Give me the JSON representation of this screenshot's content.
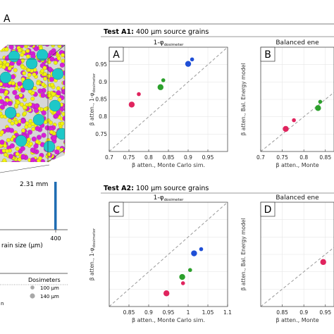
{
  "figure": {
    "section_label": "A",
    "cube_dimension": "2.31 mm",
    "hist_x_tick": "400",
    "hist_xlabel": "rain size (μm)",
    "dosimeters_title": "Dosimeters",
    "dosimeter_sizes": [
      "100 μm",
      "140 μm"
    ],
    "edge_letter": "n"
  },
  "colors": {
    "magenta": "#d81ed8",
    "yellow": "#f2f20e",
    "cyan": "#1ec8c8",
    "blue": "#1f4fd6",
    "green": "#2ca02c",
    "red": "#e0245e",
    "hist_bar": "#1f6db3",
    "dashed_line": "#999999"
  },
  "tests": [
    {
      "title_bold": "Test A1:",
      "title_rest": " 400 μm source grains"
    },
    {
      "title_bold": "Test A2:",
      "title_rest": " 100 μm source grains"
    }
  ],
  "chart_data": [
    {
      "type": "scatter",
      "panel": "A",
      "title": "1-φ",
      "title_sub": "dosimeter",
      "xlabel": "β atten., Monte Carlo sim.",
      "ylabel": "β atten., 1-φ",
      "ylabel_sub": "dosimeter",
      "xlim": [
        0.7,
        1.0
      ],
      "ylim": [
        0.7,
        1.0
      ],
      "xticks": [
        "0.7",
        "0.75",
        "0.8",
        "0.85",
        "0.9",
        "0.95"
      ],
      "yticks": [
        "0.75",
        "0.8",
        "0.85",
        "0.9",
        "0.95"
      ],
      "grid": true,
      "points": [
        {
          "x": 0.757,
          "y": 0.835,
          "color": "red",
          "size": "large"
        },
        {
          "x": 0.775,
          "y": 0.865,
          "color": "red",
          "size": "small"
        },
        {
          "x": 0.83,
          "y": 0.885,
          "color": "green",
          "size": "large"
        },
        {
          "x": 0.837,
          "y": 0.905,
          "color": "green",
          "size": "small"
        },
        {
          "x": 0.9,
          "y": 0.952,
          "color": "blue",
          "size": "large"
        },
        {
          "x": 0.91,
          "y": 0.965,
          "color": "blue",
          "size": "small"
        }
      ]
    },
    {
      "type": "scatter",
      "panel": "B",
      "title": "Balanced ene",
      "xlabel": "β atten., Monte",
      "ylabel": "β atten., Bal. Energy model",
      "xlim": [
        0.7,
        0.87
      ],
      "ylim": [
        0.7,
        1.0
      ],
      "xticks": [
        "0.7",
        "0.75",
        "0.8",
        "0.85"
      ],
      "yticks": [],
      "grid": true,
      "points": [
        {
          "x": 0.758,
          "y": 0.765,
          "color": "red",
          "size": "large"
        },
        {
          "x": 0.777,
          "y": 0.79,
          "color": "red",
          "size": "small"
        },
        {
          "x": 0.833,
          "y": 0.825,
          "color": "green",
          "size": "large"
        },
        {
          "x": 0.838,
          "y": 0.843,
          "color": "green",
          "size": "small"
        }
      ]
    },
    {
      "type": "scatter",
      "panel": "C",
      "title": "1-φ",
      "title_sub": "dosimeter",
      "xlabel": "β atten., Monte Carlo sim.",
      "ylabel": "β atten., 1-φ",
      "ylabel_sub": "dosimeter",
      "xlim": [
        0.8,
        1.1
      ],
      "ylim": [
        0.8,
        1.1
      ],
      "xticks": [
        "0.85",
        "0.9",
        "0.95",
        "1",
        "1.05",
        "1.1"
      ],
      "yticks": [],
      "grid": true,
      "points": [
        {
          "x": 0.945,
          "y": 0.838,
          "color": "red",
          "size": "large"
        },
        {
          "x": 0.987,
          "y": 0.867,
          "color": "red",
          "size": "small"
        },
        {
          "x": 0.985,
          "y": 0.885,
          "color": "green",
          "size": "large"
        },
        {
          "x": 1.005,
          "y": 0.905,
          "color": "green",
          "size": "small"
        },
        {
          "x": 1.015,
          "y": 0.953,
          "color": "blue",
          "size": "large"
        },
        {
          "x": 1.033,
          "y": 0.965,
          "color": "blue",
          "size": "small"
        }
      ]
    },
    {
      "type": "scatter",
      "panel": "D",
      "title": "Balanced ene",
      "xlabel": "β atten., Monte",
      "ylabel": "β atten., Bal. Energy model",
      "xlim": [
        0.8,
        0.97
      ],
      "ylim": [
        0.8,
        1.1
      ],
      "xticks": [
        "0.85",
        "0.9",
        "0.95"
      ],
      "yticks": [],
      "grid": true,
      "points": [
        {
          "x": 0.945,
          "y": 0.928,
          "color": "red",
          "size": "large"
        }
      ]
    }
  ]
}
